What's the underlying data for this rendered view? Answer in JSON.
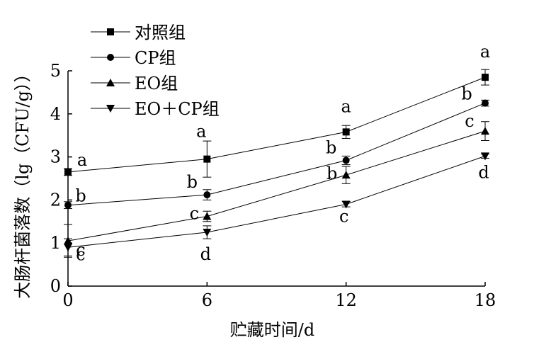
{
  "chart_data": {
    "type": "line",
    "xlabel": "贮藏时间/d",
    "ylabel": "大肠杆菌落数（lg（CFU/g））",
    "x": [
      0,
      6,
      12,
      18
    ],
    "xlim": [
      0,
      18
    ],
    "ylim": [
      0,
      5
    ],
    "x_ticks": [
      "0",
      "6",
      "12",
      "18"
    ],
    "y_ticks": [
      "0",
      "1",
      "2",
      "3",
      "4",
      "5"
    ],
    "grid": false,
    "legend_position": "top-left",
    "series": [
      {
        "name": "对照组",
        "marker": "square",
        "values": [
          2.65,
          2.95,
          3.58,
          4.85
        ],
        "errors": [
          0.08,
          0.42,
          0.15,
          0.18
        ],
        "letters": [
          "a",
          "a",
          "a",
          "a"
        ]
      },
      {
        "name": "CP组",
        "marker": "circle",
        "values": [
          1.88,
          2.12,
          2.92,
          4.25
        ],
        "errors": [
          0.08,
          0.12,
          0.1,
          0.07
        ],
        "letters": [
          "b",
          "b",
          "b",
          "b"
        ]
      },
      {
        "name": "EO组",
        "marker": "triangle-up",
        "values": [
          1.05,
          1.62,
          2.58,
          3.6
        ],
        "errors": [
          0.38,
          0.12,
          0.2,
          0.22
        ],
        "letters": [
          "c",
          "c",
          "b",
          "c"
        ]
      },
      {
        "name": "EO＋CP组",
        "marker": "triangle-down",
        "values": [
          0.9,
          1.25,
          1.9,
          3.02
        ],
        "errors": [
          0.2,
          0.15,
          0.06,
          0.05
        ],
        "letters": [
          "c",
          "d",
          "c",
          "d"
        ]
      }
    ]
  }
}
